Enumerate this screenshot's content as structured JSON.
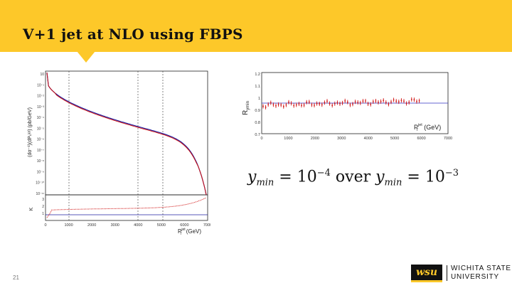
{
  "slide": {
    "title": "V+1 jet at NLO using FBPS",
    "number": "21"
  },
  "formula": {
    "y1": "y",
    "y1_sub": "min",
    "eq1": "= 10",
    "exp1": "−4",
    "over": "over",
    "y2": "y",
    "y2_sub": "min",
    "eq2": "= 10",
    "exp2": "−3"
  },
  "left_plot": {
    "ylabel": "(dσ⁻¹)(dPₜʲᵉᵗ) (pb/GeV)",
    "ratio_ylabel": "K",
    "xlabel": "P",
    "xlabel_sup": "jet",
    "xlabel_sub": "T",
    "xlabel_unit": "(GeV)",
    "x_ticks": [
      "0",
      "1000",
      "2000",
      "3000",
      "4000",
      "5000",
      "6000",
      "7000"
    ],
    "y_ticks": [
      "10",
      "10⁻¹",
      "10⁻²",
      "10⁻³",
      "10⁻⁴",
      "10⁻⁵",
      "10⁻⁶",
      "10⁻⁷",
      "10⁻⁸",
      "10⁻⁹",
      "10⁻¹⁰",
      "10⁻¹¹"
    ],
    "ratio_ticks": [
      "3",
      "2",
      "1"
    ]
  },
  "right_plot": {
    "ylabel": "R",
    "ylabel_sub": "ymin",
    "xlabel": "P",
    "xlabel_sup": "jet",
    "xlabel_sub": "T",
    "xlabel_unit": "(GeV)",
    "x_ticks": [
      "0",
      "1000",
      "2000",
      "3000",
      "4000",
      "5000",
      "6000",
      "7000"
    ],
    "y_ticks": [
      "1.2",
      "1.1",
      "1",
      "0.9",
      "0.8",
      "0.7"
    ]
  },
  "footer": {
    "logo_mark": "wsu",
    "university_line1": "WICHITA STATE",
    "university_line2": "UNIVERSITY"
  },
  "colors": {
    "accent": "#fdc829",
    "data_red": "#d01010",
    "theory_blue": "#2020a0"
  }
}
